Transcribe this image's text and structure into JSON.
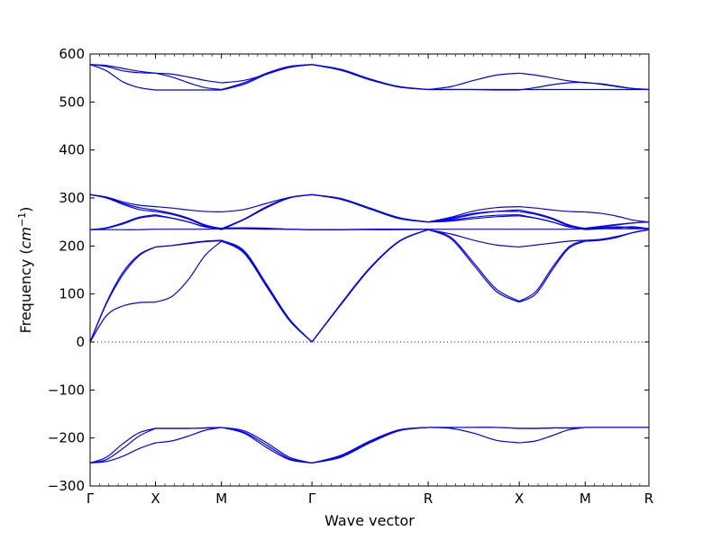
{
  "chart_data": {
    "type": "line",
    "title": "",
    "xlabel": "Wave vector",
    "ylabel_main": "Frequency (",
    "ylabel_math": "cm",
    "ylabel_exp": "−1",
    "ylabel_close": ")",
    "ylim": [
      -300,
      600
    ],
    "yticks": [
      -300,
      -200,
      -100,
      0,
      100,
      200,
      300,
      400,
      500,
      600
    ],
    "ytick_labels": [
      "−300",
      "−200",
      "−100",
      "0",
      "100",
      "200",
      "300",
      "400",
      "500",
      "600"
    ],
    "x_positions": [
      0,
      0.117,
      0.235,
      0.397,
      0.605,
      0.768,
      0.886,
      1.0
    ],
    "xtick_labels": [
      "Γ",
      "X",
      "M",
      "Γ",
      "R",
      "X",
      "M",
      "R"
    ],
    "zero_line": "dotted",
    "line_color": "#0000ff",
    "segments": [
      {
        "path": "Γ-X",
        "bands": [
          [
            0,
            0.25,
            0.5,
            0.75,
            1
          ],
          [
            [
              -252,
              -249,
              -238,
              -222,
              -210
            ],
            [
              -252,
              -245,
              -222,
              -196,
              -180
            ],
            [
              -252,
              -240,
              -212,
              -189,
              -180
            ],
            [
              0,
              55,
              75,
              82,
              83
            ],
            [
              0,
              80,
              140,
              180,
              198
            ],
            [
              0,
              82,
              145,
              182,
              198
            ],
            [
              234,
              234,
              234,
              234,
              235
            ],
            [
              234,
              237,
              246,
              258,
              263
            ],
            [
              234,
              238,
              248,
              260,
              265
            ],
            [
              307,
              302,
              292,
              285,
              282
            ],
            [
              307,
              300,
              287,
              276,
              272
            ],
            [
              307,
              301,
              289,
              280,
              275
            ],
            [
              578,
              576,
              570,
              564,
              560
            ],
            [
              578,
              574,
              565,
              561,
              560
            ],
            [
              578,
              565,
              542,
              530,
              525
            ]
          ]
        ]
      },
      {
        "path": "X-M",
        "bands": [
          [
            0,
            0.25,
            0.5,
            0.75,
            1
          ],
          [
            [
              -210,
              -206,
              -196,
              -184,
              -178
            ],
            [
              -180,
              -180,
              -180,
              -179,
              -178
            ],
            [
              -180,
              -180,
              -180,
              -179,
              -178
            ],
            [
              83,
              95,
              130,
              180,
              210
            ],
            [
              198,
              201,
              205,
              209,
              211
            ],
            [
              198,
              201,
              206,
              210,
              212
            ],
            [
              235,
              235,
              235,
              235,
              236
            ],
            [
              263,
              258,
              250,
              240,
              236
            ],
            [
              265,
              258,
              250,
              240,
              237
            ],
            [
              282,
              279,
              275,
              272,
              271
            ],
            [
              272,
              266,
              256,
              242,
              234
            ],
            [
              275,
              268,
              258,
              244,
              236
            ],
            [
              560,
              558,
              552,
              545,
              540
            ],
            [
              560,
              552,
              540,
              530,
              526
            ],
            [
              525,
              525,
              525,
              525,
              525
            ]
          ]
        ]
      },
      {
        "path": "M-Γ",
        "bands": [
          [
            0,
            0.25,
            0.5,
            0.75,
            1
          ],
          [
            [
              -178,
              -185,
              -210,
              -240,
              -252
            ],
            [
              -178,
              -190,
              -220,
              -245,
              -252
            ],
            [
              -178,
              -188,
              -215,
              -243,
              -252
            ],
            [
              210,
              185,
              115,
              45,
              0
            ],
            [
              212,
              190,
              120,
              48,
              0
            ],
            [
              211,
              188,
              118,
              47,
              0
            ],
            [
              236,
              236,
              235,
              235,
              234
            ],
            [
              236,
              237,
              236,
              235,
              234
            ],
            [
              237,
              238,
              237,
              235,
              234
            ],
            [
              271,
              276,
              289,
              301,
              307
            ],
            [
              234,
              255,
              280,
              300,
              307
            ],
            [
              236,
              256,
              282,
              301,
              307
            ],
            [
              540,
              545,
              558,
              572,
              578
            ],
            [
              526,
              540,
              560,
              574,
              578
            ],
            [
              525,
              537,
              558,
              573,
              578
            ]
          ]
        ]
      },
      {
        "path": "Γ-R",
        "bands": [
          [
            0,
            0.25,
            0.5,
            0.75,
            1
          ],
          [
            [
              -252,
              -240,
              -210,
              -185,
              -178
            ],
            [
              -252,
              -238,
              -208,
              -184,
              -178
            ],
            [
              -252,
              -236,
              -206,
              -183,
              -178
            ],
            [
              0,
              80,
              155,
              210,
              234
            ],
            [
              0,
              78,
              153,
              209,
              234
            ],
            [
              0,
              79,
              154,
              210,
              234
            ],
            [
              234,
              234,
              234,
              234,
              235
            ],
            [
              234,
              234,
              235,
              235,
              235
            ],
            [
              234,
              234,
              235,
              235,
              235
            ],
            [
              307,
              298,
              278,
              258,
              250
            ],
            [
              307,
              297,
              277,
              257,
              250
            ],
            [
              307,
              299,
              279,
              259,
              250
            ],
            [
              578,
              568,
              548,
              532,
              526
            ],
            [
              578,
              566,
              546,
              531,
              526
            ],
            [
              578,
              567,
              547,
              532,
              526
            ]
          ]
        ]
      },
      {
        "path": "R-X",
        "bands": [
          [
            0,
            0.25,
            0.5,
            0.75,
            1
          ],
          [
            [
              -178,
              -180,
              -190,
              -205,
              -210
            ],
            [
              -178,
              -178,
              -178,
              -178,
              -180
            ],
            [
              -178,
              -178,
              -178,
              -178,
              -180
            ],
            [
              234,
              215,
              160,
              105,
              83
            ],
            [
              234,
              218,
              165,
              110,
              85
            ],
            [
              234,
              225,
              212,
              202,
              198
            ],
            [
              235,
              235,
              235,
              235,
              235
            ],
            [
              250,
              254,
              260,
              264,
              265
            ],
            [
              250,
              252,
              257,
              261,
              263
            ],
            [
              250,
              260,
              273,
              280,
              282
            ],
            [
              250,
              258,
              268,
              272,
              272
            ],
            [
              250,
              256,
              266,
              272,
              275
            ],
            [
              526,
              532,
              545,
              556,
              560
            ],
            [
              526,
              526,
              526,
              526,
              526
            ],
            [
              526,
              526,
              526,
              525,
              525
            ]
          ]
        ]
      },
      {
        "path": "X-M",
        "bands": [
          [
            0,
            0.25,
            0.5,
            0.75,
            1
          ],
          [
            [
              -210,
              -206,
              -195,
              -183,
              -178
            ],
            [
              -180,
              -180,
              -179,
              -179,
              -178
            ],
            [
              -180,
              -180,
              -179,
              -179,
              -178
            ],
            [
              83,
              100,
              150,
              195,
              210
            ],
            [
              85,
              105,
              155,
              198,
              212
            ],
            [
              198,
              202,
              206,
              210,
              212
            ],
            [
              235,
              235,
              235,
              235,
              236
            ],
            [
              263,
              258,
              250,
              240,
              236
            ],
            [
              265,
              258,
              250,
              240,
              237
            ],
            [
              282,
              279,
              275,
              272,
              271
            ],
            [
              272,
              266,
              256,
              242,
              234
            ],
            [
              275,
              268,
              258,
              244,
              236
            ],
            [
              560,
              556,
              550,
              544,
              540
            ],
            [
              526,
              526,
              526,
              526,
              526
            ],
            [
              525,
              530,
              536,
              540,
              541
            ]
          ]
        ]
      },
      {
        "path": "M-R",
        "bands": [
          [
            0,
            0.25,
            0.5,
            0.75,
            1
          ],
          [
            [
              -178,
              -178,
              -178,
              -178,
              -178
            ],
            [
              -178,
              -178,
              -178,
              -178,
              -178
            ],
            [
              -178,
              -178,
              -178,
              -178,
              -178
            ],
            [
              210,
              212,
              218,
              228,
              234
            ],
            [
              212,
              214,
              220,
              228,
              234
            ],
            [
              211,
              213,
              219,
              228,
              234
            ],
            [
              236,
              236,
              236,
              236,
              236
            ],
            [
              236,
              240,
              244,
              248,
              250
            ],
            [
              237,
              241,
              245,
              248,
              250
            ],
            [
              271,
              268,
              262,
              254,
              250
            ],
            [
              234,
              236,
              238,
              240,
              236
            ],
            [
              236,
              238,
              240,
              238,
              236
            ],
            [
              540,
              538,
              533,
              528,
              526
            ],
            [
              526,
              526,
              526,
              526,
              526
            ],
            [
              541,
              537,
              532,
              528,
              526
            ]
          ]
        ]
      }
    ]
  }
}
